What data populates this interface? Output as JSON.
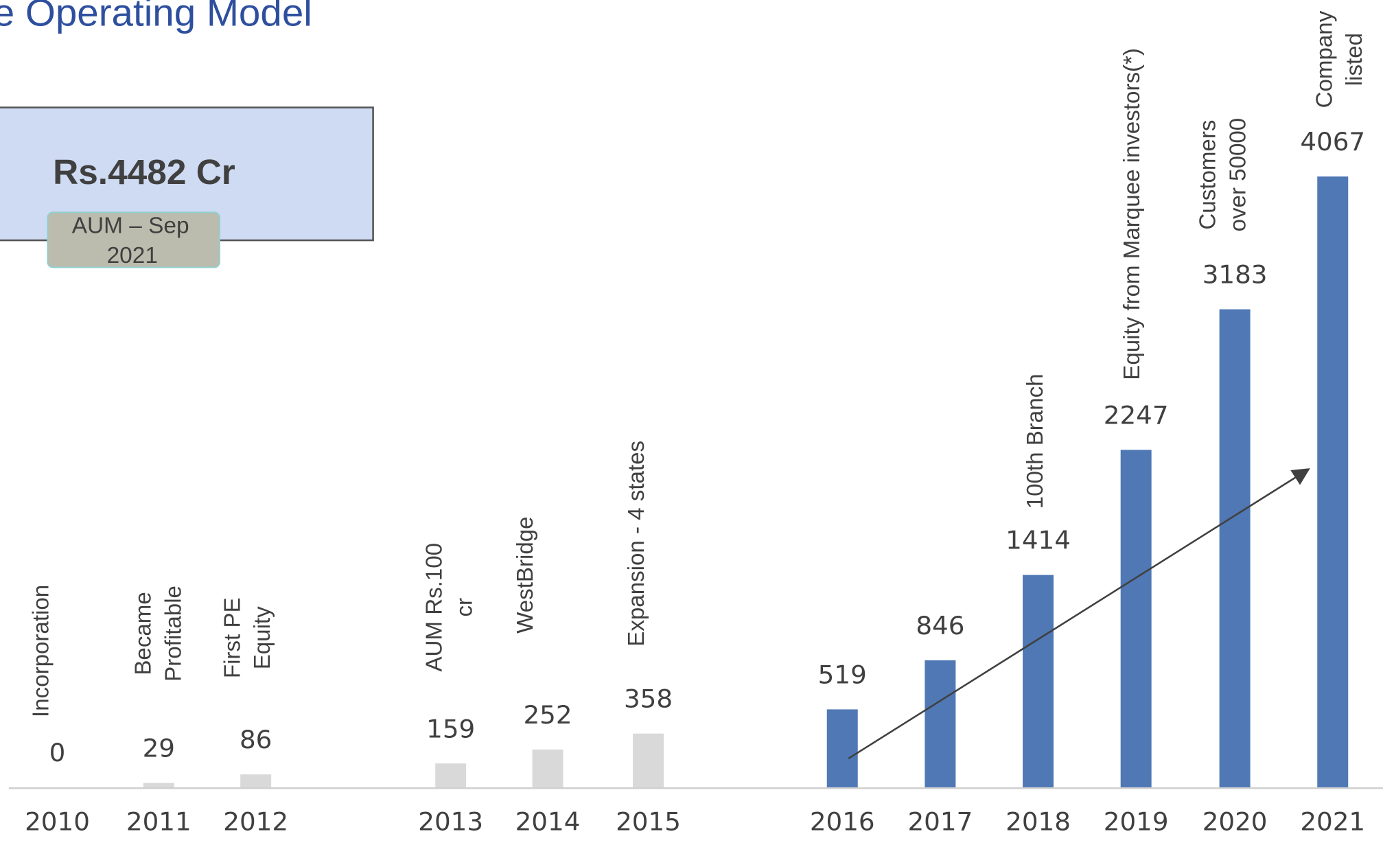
{
  "chart_data": {
    "type": "bar",
    "title": "e Operating Model",
    "highlight": {
      "value": "Rs.4482 Cr",
      "label": [
        "AUM – Sep",
        "2021"
      ]
    },
    "categories": [
      "2010",
      "2011",
      "2012",
      "2013",
      "2014",
      "2015",
      "2016",
      "2017",
      "2018",
      "2019",
      "2020",
      "2021"
    ],
    "values": [
      0,
      29,
      86,
      159,
      252,
      358,
      519,
      846,
      1414,
      2247,
      3183,
      4067
    ],
    "colors": [
      "#d9d9d9",
      "#d9d9d9",
      "#d9d9d9",
      "#d9d9d9",
      "#d9d9d9",
      "#d9d9d9",
      "#4f78b5",
      "#4f78b5",
      "#4f78b5",
      "#4f78b5",
      "#4f78b5",
      "#4f78b5"
    ],
    "annotations": [
      [
        "Incorporation"
      ],
      [
        "Became",
        "Profitable"
      ],
      [
        "First PE",
        "Equity"
      ],
      [
        "AUM Rs.100",
        "cr"
      ],
      [
        "WestBridge"
      ],
      [
        "Expansion - 4 states"
      ],
      null,
      null,
      [
        "100th Branch"
      ],
      [
        "Equity from Marquee investors(*)"
      ],
      [
        "Customers",
        "over 50000"
      ],
      [
        "Company",
        "listed"
      ]
    ]
  }
}
